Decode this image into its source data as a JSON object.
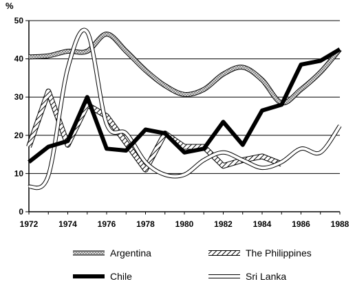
{
  "chart_data": {
    "type": "line",
    "title": "",
    "xlabel": "",
    "ylabel": "%",
    "xlim": [
      1972,
      1988
    ],
    "ylim": [
      0,
      50
    ],
    "x_ticks": [
      1972,
      1974,
      1976,
      1978,
      1980,
      1982,
      1984,
      1986,
      1988
    ],
    "y_ticks": [
      0,
      10,
      20,
      30,
      40,
      50
    ],
    "grid": "horizontal",
    "legend_position": "bottom",
    "series": [
      {
        "name": "Argentina",
        "style": "gray-hatched",
        "x": [
          1972,
          1973,
          1974,
          1975,
          1976,
          1977,
          1978,
          1979,
          1980,
          1981,
          1982,
          1983,
          1984,
          1985,
          1986,
          1987,
          1988
        ],
        "values": [
          40.5,
          40.8,
          42,
          42,
          46.5,
          42,
          37,
          33,
          30.7,
          32,
          36,
          37.8,
          34.5,
          28.5,
          32,
          36.5,
          42.5
        ]
      },
      {
        "name": "The Philippines",
        "style": "diagonal-hatched",
        "x": [
          1972,
          1973,
          1974,
          1975,
          1976,
          1977,
          1978,
          1979,
          1980,
          1981,
          1982,
          1983,
          1984,
          1985
        ],
        "values": [
          17,
          31.5,
          17.5,
          28,
          25,
          18,
          11,
          20.5,
          17,
          17,
          12,
          13.5,
          14.5,
          12.5
        ]
      },
      {
        "name": "Chile",
        "style": "thick-black",
        "x": [
          1972,
          1973,
          1974,
          1975,
          1976,
          1977,
          1978,
          1979,
          1980,
          1981,
          1982,
          1983,
          1984,
          1985,
          1986,
          1987,
          1988
        ],
        "values": [
          13,
          17,
          18.5,
          30,
          16.5,
          16,
          21.5,
          20.5,
          15.5,
          16.5,
          23.5,
          17.5,
          26.5,
          28,
          38.5,
          39.5,
          42.5
        ]
      },
      {
        "name": "Sri Lanka",
        "style": "white-outline",
        "x": [
          1972,
          1973,
          1974,
          1975,
          1976,
          1977,
          1978,
          1979,
          1980,
          1981,
          1982,
          1983,
          1984,
          1985,
          1986,
          1987,
          1988
        ],
        "values": [
          6.5,
          9.5,
          37.5,
          47,
          23,
          20.5,
          13,
          9.7,
          9.7,
          13.5,
          15.5,
          13.5,
          11.5,
          13,
          16.5,
          15.5,
          22.5
        ]
      }
    ]
  }
}
